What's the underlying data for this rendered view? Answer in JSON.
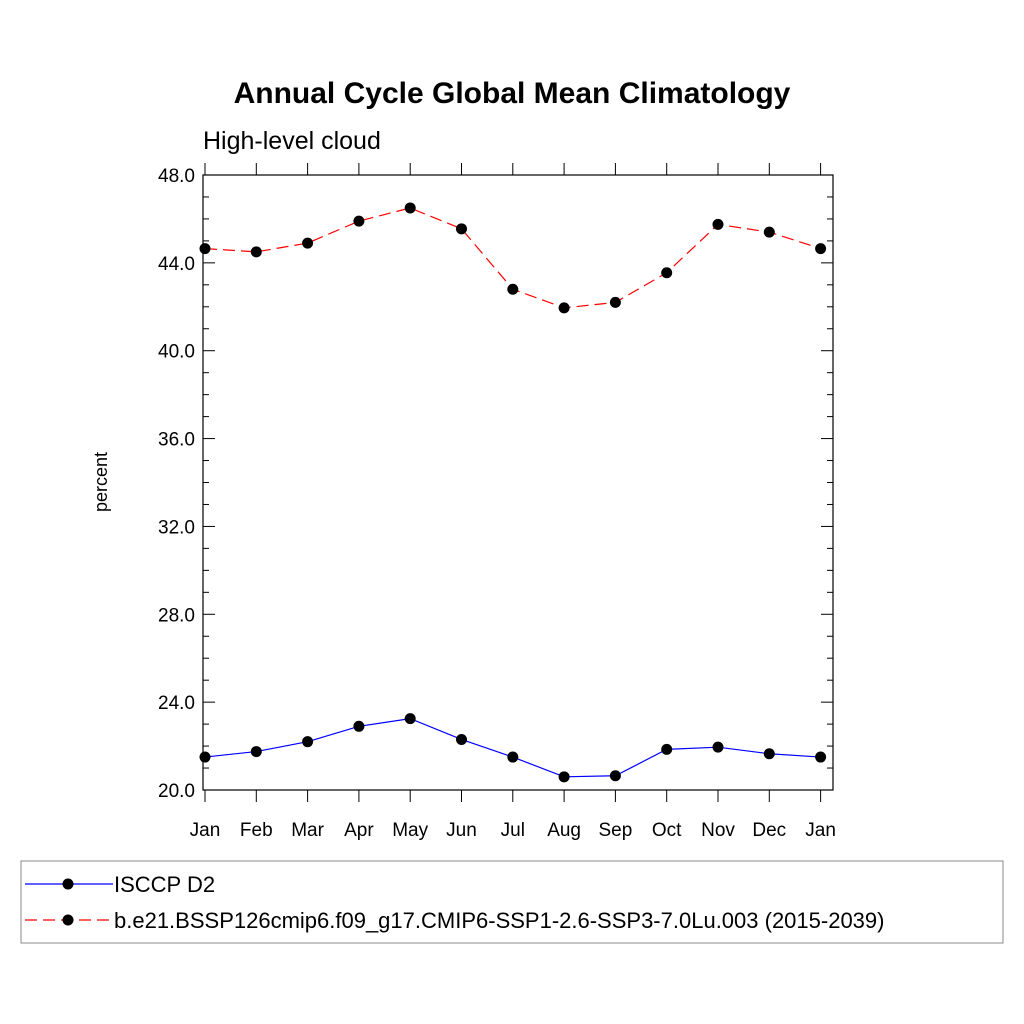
{
  "chart_data": {
    "type": "line",
    "title": "Annual Cycle Global Mean Climatology",
    "subtitle": "High-level cloud",
    "xlabel": "",
    "ylabel": "percent",
    "categories": [
      "Jan",
      "Feb",
      "Mar",
      "Apr",
      "May",
      "Jun",
      "Jul",
      "Aug",
      "Sep",
      "Oct",
      "Nov",
      "Dec",
      "Jan"
    ],
    "ylim": [
      20.0,
      48.0
    ],
    "yticks": [
      "20.0",
      "24.0",
      "28.0",
      "32.0",
      "36.0",
      "40.0",
      "44.0",
      "48.0"
    ],
    "grid": false,
    "legend_position": "bottom",
    "series": [
      {
        "name": "ISCCP D2",
        "color": "#0000ff",
        "line_style": "solid",
        "marker": "filled-circle",
        "values": [
          21.5,
          21.75,
          22.2,
          22.9,
          23.25,
          22.3,
          21.5,
          20.6,
          20.65,
          21.85,
          21.95,
          21.65,
          21.5
        ]
      },
      {
        "name": "b.e21.BSSP126cmip6.f09_g17.CMIP6-SSP1-2.6-SSP3-7.0Lu.003 (2015-2039)",
        "color": "#ff0000",
        "line_style": "dashed",
        "marker": "filled-circle",
        "values": [
          44.65,
          44.5,
          44.9,
          45.9,
          46.5,
          45.55,
          42.8,
          41.95,
          42.2,
          43.55,
          45.75,
          45.4,
          44.65
        ]
      }
    ]
  }
}
